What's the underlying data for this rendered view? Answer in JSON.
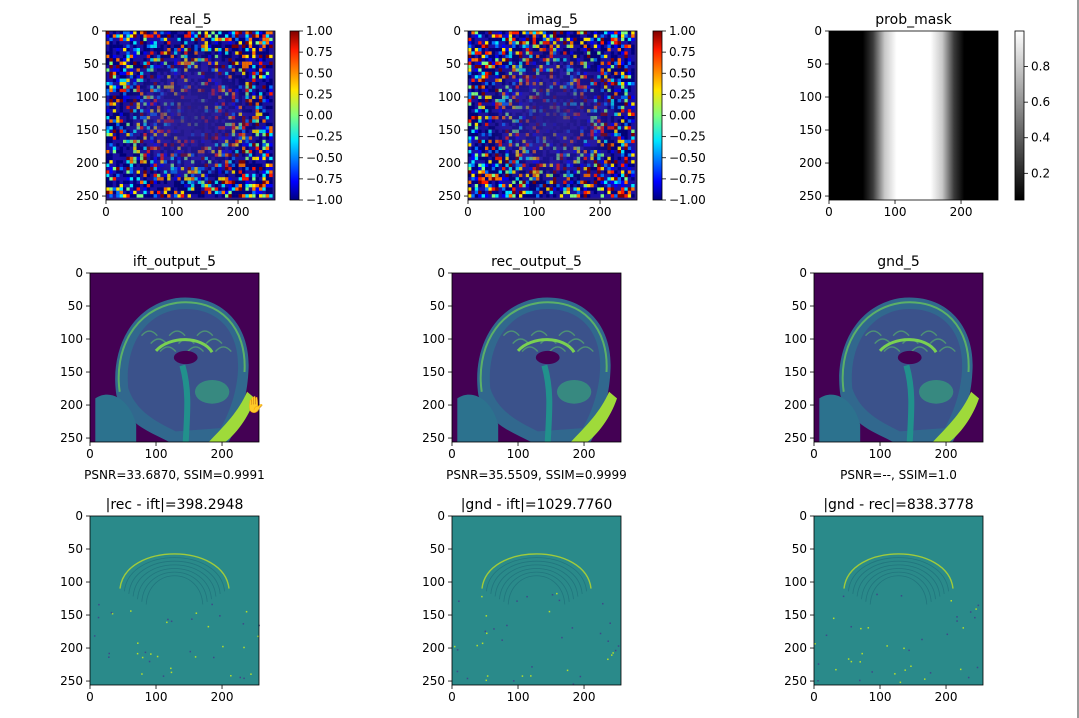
{
  "figure": {
    "background": "#ffffff",
    "panels": [
      {
        "id": "real",
        "title": "real_5",
        "kind": "noise",
        "cmap": "jet",
        "xticks": [
          0,
          100,
          200
        ],
        "yticks": [
          0,
          50,
          100,
          150,
          200,
          250
        ],
        "caption": "",
        "colorbar": {
          "cmap": "jet",
          "ticks": [
            "1.00",
            "0.75",
            "0.50",
            "0.25",
            "0.00",
            "−0.25",
            "−0.50",
            "−0.75",
            "−1.00"
          ]
        }
      },
      {
        "id": "imag",
        "title": "imag_5",
        "kind": "noise",
        "cmap": "jet",
        "xticks": [
          0,
          100,
          200
        ],
        "yticks": [
          0,
          50,
          100,
          150,
          200,
          250
        ],
        "caption": "",
        "colorbar": {
          "cmap": "jet",
          "ticks": [
            "1.00",
            "0.75",
            "0.50",
            "0.25",
            "0.00",
            "−0.25",
            "−0.50",
            "−0.75",
            "−1.00"
          ]
        }
      },
      {
        "id": "mask",
        "title": "prob_mask",
        "kind": "mask",
        "cmap": "gray",
        "xticks": [
          0,
          100,
          200
        ],
        "yticks": [
          0,
          50,
          100,
          150,
          200,
          250
        ],
        "caption": "",
        "colorbar": {
          "cmap": "gray",
          "ticks": [
            "0.8",
            "0.6",
            "0.4",
            "0.2"
          ]
        }
      },
      {
        "id": "ift",
        "title": "ift_output_5",
        "kind": "mri",
        "cmap": "viridis",
        "xticks": [
          0,
          100,
          200
        ],
        "yticks": [
          0,
          50,
          100,
          150,
          200,
          250
        ],
        "caption": "PSNR=33.6870, SSIM=0.9991"
      },
      {
        "id": "rec",
        "title": "rec_output_5",
        "kind": "mri",
        "cmap": "viridis",
        "xticks": [
          0,
          100,
          200
        ],
        "yticks": [
          0,
          50,
          100,
          150,
          200,
          250
        ],
        "caption": "PSNR=35.5509, SSIM=0.9999"
      },
      {
        "id": "gnd",
        "title": "gnd_5",
        "kind": "mri",
        "cmap": "viridis",
        "xticks": [
          0,
          100,
          200
        ],
        "yticks": [
          0,
          50,
          100,
          150,
          200,
          250
        ],
        "caption": "PSNR=--, SSIM=1.0"
      },
      {
        "id": "d1",
        "title": "|rec - ift|=398.2948",
        "kind": "diff",
        "cmap": "viridis",
        "xticks": [
          0,
          100,
          200
        ],
        "yticks": [
          0,
          50,
          100,
          150,
          200,
          250
        ],
        "caption": ""
      },
      {
        "id": "d2",
        "title": "|gnd - ift|=1029.7760",
        "kind": "diff",
        "cmap": "viridis",
        "xticks": [
          0,
          100,
          200
        ],
        "yticks": [
          0,
          50,
          100,
          150,
          200,
          250
        ],
        "caption": ""
      },
      {
        "id": "d3",
        "title": "|gnd - rec|=838.3778",
        "kind": "diff",
        "cmap": "viridis",
        "xticks": [
          0,
          100,
          200
        ],
        "yticks": [
          0,
          50,
          100,
          150,
          200,
          250
        ],
        "caption": ""
      }
    ]
  },
  "chart_data": {
    "type": "heatmap",
    "image_extent": {
      "x": [
        0,
        256
      ],
      "y": [
        0,
        256
      ]
    },
    "grid": false,
    "cursor_icon": "hand-pointer-icon",
    "metrics": [
      {
        "panel": "ift_output_5",
        "PSNR": 33.687,
        "SSIM": 0.9991
      },
      {
        "panel": "rec_output_5",
        "PSNR": 35.5509,
        "SSIM": 0.9999
      },
      {
        "panel": "gnd_5",
        "PSNR": "--",
        "SSIM": 1.0
      }
    ],
    "difference_norms": [
      {
        "label": "|rec - ift|",
        "value": 398.2948
      },
      {
        "label": "|gnd - ift|",
        "value": 1029.776
      },
      {
        "label": "|gnd - rec|",
        "value": 838.3778
      }
    ],
    "colorbars": [
      {
        "panel": "real_5",
        "range": [
          -1.0,
          1.0
        ],
        "cmap": "jet"
      },
      {
        "panel": "imag_5",
        "range": [
          -1.0,
          1.0
        ],
        "cmap": "jet"
      },
      {
        "panel": "prob_mask",
        "range": [
          0.05,
          1.0
        ],
        "cmap": "gray"
      }
    ]
  }
}
